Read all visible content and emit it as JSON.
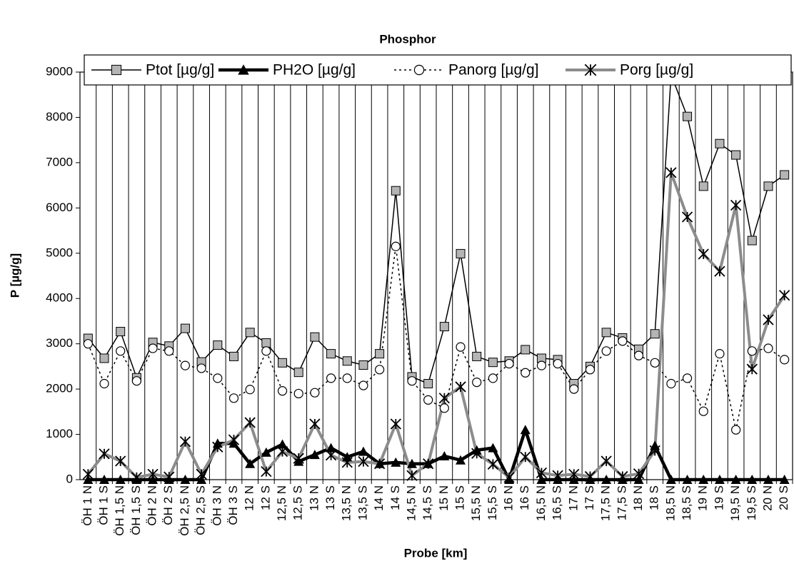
{
  "chart_data": {
    "type": "line",
    "title": "Phosphor",
    "x_label": "Probe [km]",
    "y_label": "P [µg/g]",
    "categories": [
      "ÖH 1 N",
      "ÖH 1 S",
      "ÖH 1,5 N",
      "ÖH 1,5 S",
      "ÖH 2 N",
      "ÖH 2 S",
      "ÖH 2,5 N",
      "ÖH 2,5 S",
      "ÖH 3 N",
      "ÖH 3 S",
      "12 N",
      "12 S",
      "12,5 N",
      "12,5 S",
      "13 N",
      "13 S",
      "13,5 N",
      "13,5 S",
      "14 N",
      "14 S",
      "14,5 N",
      "14,5 S",
      "15 N",
      "15 S",
      "15,5 N",
      "15,5 S",
      "16 N",
      "16 S",
      "16,5 N",
      "16,5 S",
      "17 N",
      "17 S",
      "17,5 N",
      "17,5 S",
      "18 N",
      "18 S",
      "18,5 N",
      "18,5 S",
      "19 N",
      "19 S",
      "19,5 N",
      "19,5 S",
      "20 N",
      "20 S"
    ],
    "series": [
      {
        "name": "Ptot [µg/g]",
        "color": "#000000",
        "marker": "square",
        "marker_fill": "#b4b4b4",
        "line_width": 1.5,
        "line_style": "solid",
        "values": [
          3120,
          2680,
          3270,
          2250,
          3030,
          2950,
          3340,
          2600,
          2970,
          2720,
          3250,
          3020,
          2580,
          2370,
          3150,
          2780,
          2620,
          2530,
          2780,
          6380,
          2270,
          2120,
          3380,
          4990,
          2720,
          2590,
          2620,
          2870,
          2680,
          2650,
          2120,
          2500,
          3250,
          3130,
          2880,
          3220,
          8940,
          8020,
          6480,
          7420,
          7170,
          5280,
          6480,
          6730
        ]
      },
      {
        "name": "PH2O [µg/g]",
        "color": "#000000",
        "marker": "triangle",
        "marker_fill": "#000000",
        "line_width": 4.5,
        "line_style": "solid",
        "values": [
          0,
          0,
          0,
          0,
          0,
          0,
          0,
          0,
          800,
          800,
          350,
          600,
          780,
          400,
          550,
          700,
          500,
          620,
          350,
          380,
          350,
          350,
          520,
          430,
          650,
          700,
          0,
          1100,
          0,
          0,
          0,
          0,
          0,
          0,
          0,
          750,
          0,
          0,
          0,
          0,
          0,
          0,
          0,
          0
        ]
      },
      {
        "name": "Panorg [µg/g]",
        "color": "#000000",
        "marker": "circle",
        "marker_fill": "#ffffff",
        "line_width": 1.5,
        "line_style": "dotted",
        "values": [
          3000,
          2120,
          2840,
          2180,
          2900,
          2840,
          2520,
          2460,
          2240,
          1800,
          1990,
          2840,
          1960,
          1900,
          1920,
          2240,
          2240,
          2080,
          2430,
          5150,
          2180,
          1760,
          1580,
          2930,
          2150,
          2240,
          2560,
          2360,
          2520,
          2560,
          2000,
          2430,
          2840,
          3060,
          2740,
          2580,
          2120,
          2240,
          1510,
          2780,
          1100,
          2840,
          2900,
          2650
        ]
      },
      {
        "name": "Porg [µg/g]",
        "color": "#8c8c8c",
        "marker": "star",
        "marker_fill": "#000000",
        "line_width": 4,
        "line_style": "solid",
        "values": [
          120,
          570,
          410,
          50,
          120,
          60,
          840,
          120,
          720,
          880,
          1260,
          180,
          620,
          470,
          1230,
          540,
          380,
          400,
          350,
          1230,
          90,
          350,
          1800,
          2050,
          580,
          340,
          50,
          500,
          150,
          90,
          120,
          70,
          410,
          70,
          130,
          640,
          6780,
          5800,
          4980,
          4600,
          6060,
          2440,
          3530,
          4070
        ]
      }
    ],
    "ylim": [
      0,
      9000
    ],
    "yticks": [
      0,
      1000,
      2000,
      3000,
      4000,
      5000,
      6000,
      7000,
      8000,
      9000
    ],
    "x_grid": true,
    "legend": "top"
  }
}
